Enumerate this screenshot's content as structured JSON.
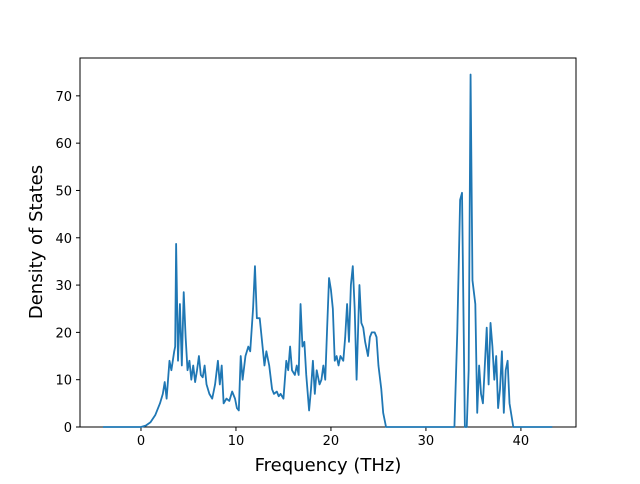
{
  "chart_data": {
    "type": "line",
    "xlabel": "Frequency (THz)",
    "ylabel": "Density of States",
    "x": [
      -4,
      0,
      0.5,
      1,
      1.5,
      2,
      2.3,
      2.5,
      2.7,
      3,
      3.2,
      3.5,
      3.6,
      3.7,
      3.9,
      4.1,
      4.3,
      4.5,
      4.7,
      4.9,
      5.1,
      5.3,
      5.5,
      5.7,
      5.9,
      6.1,
      6.3,
      6.5,
      6.7,
      6.9,
      7.2,
      7.5,
      7.8,
      8.1,
      8.3,
      8.5,
      8.7,
      9,
      9.3,
      9.6,
      9.9,
      10.1,
      10.3,
      10.5,
      10.7,
      11,
      11.3,
      11.5,
      11.8,
      12,
      12.2,
      12.5,
      12.8,
      13,
      13.2,
      13.5,
      13.8,
      14,
      14.3,
      14.5,
      14.7,
      15,
      15.3,
      15.5,
      15.7,
      15.9,
      16.2,
      16.4,
      16.6,
      16.8,
      17,
      17.2,
      17.4,
      17.7,
      17.9,
      18.1,
      18.3,
      18.5,
      18.8,
      19,
      19.2,
      19.4,
      19.6,
      19.8,
      20,
      20.2,
      20.4,
      20.6,
      20.8,
      21,
      21.3,
      21.5,
      21.7,
      21.9,
      22.1,
      22.3,
      22.5,
      22.7,
      23,
      23.2,
      23.4,
      23.6,
      23.9,
      24.1,
      24.3,
      24.6,
      24.8,
      25,
      25.3,
      25.5,
      25.8,
      33,
      33.3,
      33.6,
      33.8,
      34.1,
      34.3,
      34.5,
      34.7,
      34.9,
      35.2,
      35.4,
      35.6,
      35.8,
      36,
      36.2,
      36.4,
      36.6,
      36.8,
      37,
      37.2,
      37.4,
      37.6,
      37.8,
      38,
      38.2,
      38.4,
      38.6,
      38.8,
      39.2,
      43.3
    ],
    "series": [
      {
        "color": "#1f77b4",
        "values": [
          0,
          0,
          0.3,
          1,
          2.5,
          5,
          7,
          9.5,
          6,
          14,
          12,
          16,
          17,
          38.7,
          14,
          26,
          13,
          28.5,
          19,
          12,
          14,
          10,
          13,
          9.5,
          12,
          15,
          11,
          10.5,
          13,
          9,
          7,
          6,
          9,
          14,
          9,
          13,
          5,
          6,
          5.5,
          7.5,
          6,
          4,
          3.5,
          15,
          10,
          15,
          17,
          16,
          25,
          34,
          23,
          23,
          17,
          13,
          16,
          13,
          8,
          7,
          7.5,
          6.5,
          7,
          6,
          14,
          12,
          17,
          12,
          11,
          13,
          11,
          26,
          17,
          18,
          11,
          3.5,
          8,
          14,
          7,
          12,
          9,
          10,
          13,
          10,
          21,
          31.5,
          29,
          25,
          14,
          15,
          13,
          15,
          14,
          19,
          26,
          18,
          30,
          34,
          25,
          10,
          30,
          22,
          21,
          18,
          15,
          19,
          20,
          20,
          19,
          13,
          8,
          3,
          0,
          0,
          20,
          48,
          49.5,
          0,
          0,
          12,
          74.5,
          31,
          26,
          3,
          13,
          7,
          5,
          13,
          21,
          9,
          22,
          17,
          10,
          15,
          4,
          8,
          16,
          3,
          12,
          14,
          5,
          0,
          0
        ]
      }
    ],
    "xlim": [
      -6.42,
      45.8
    ],
    "ylim": [
      0,
      78
    ],
    "xticks": [
      0,
      10,
      20,
      30,
      40
    ],
    "yticks": [
      0,
      10,
      20,
      30,
      40,
      50,
      60,
      70
    ]
  }
}
